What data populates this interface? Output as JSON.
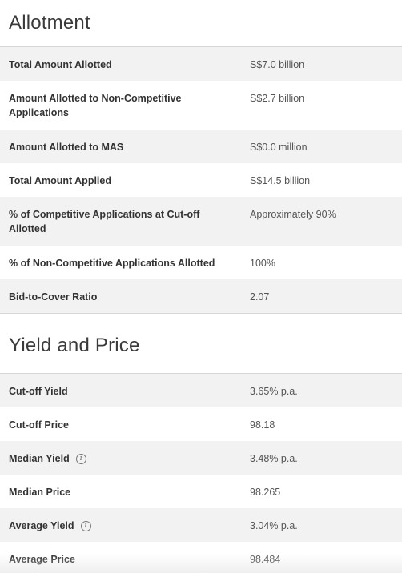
{
  "allotment": {
    "title": "Allotment",
    "rows": [
      {
        "label": "Total Amount Allotted",
        "value": "S$7.0 billion"
      },
      {
        "label": "Amount Allotted to Non-Competitive Applications",
        "value": "S$2.7 billion"
      },
      {
        "label": "Amount Allotted to MAS",
        "value": "S$0.0 million"
      },
      {
        "label": "Total Amount Applied",
        "value": "S$14.5 billion"
      },
      {
        "label": "% of Competitive Applications at Cut-off Allotted",
        "value": "Approximately 90%"
      },
      {
        "label": "% of Non-Competitive Applications Allotted",
        "value": "100%"
      },
      {
        "label": "Bid-to-Cover Ratio",
        "value": "2.07"
      }
    ]
  },
  "yield_price": {
    "title": "Yield and Price",
    "rows": [
      {
        "label": "Cut-off Yield",
        "value": "3.65% p.a."
      },
      {
        "label": "Cut-off Price",
        "value": "98.18"
      },
      {
        "label": "Median Yield",
        "value": "3.48% p.a.",
        "icon": "info-icon"
      },
      {
        "label": "Median Price",
        "value": "98.265"
      },
      {
        "label": "Average Yield",
        "value": "3.04% p.a.",
        "icon": "info-icon"
      },
      {
        "label": "Average Price",
        "value": "98.484"
      }
    ]
  },
  "info_glyph": "i"
}
